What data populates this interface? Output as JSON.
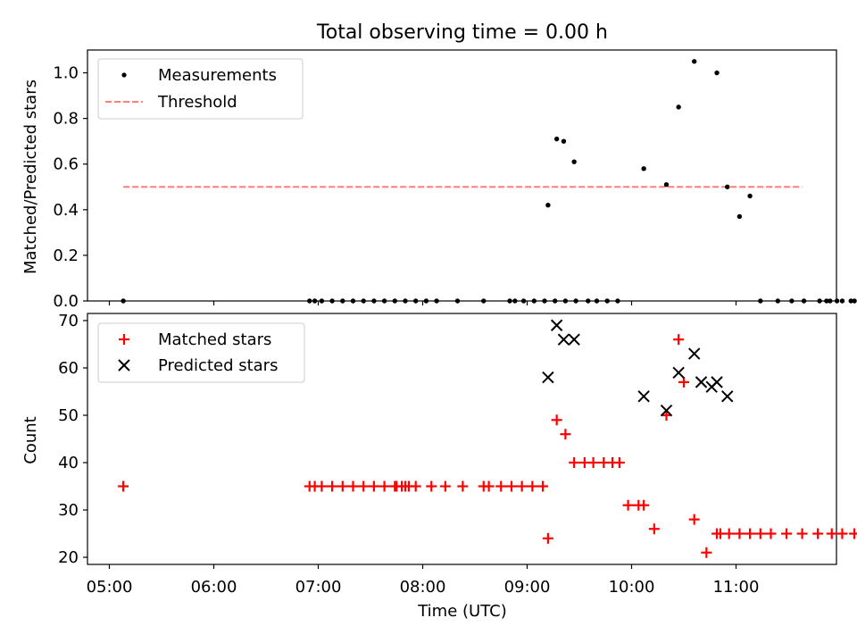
{
  "chart_data": [
    {
      "type": "scatter",
      "title": "Total observing time = 0.00 h",
      "xlabel": "",
      "ylabel": "Matched/Predicted stars",
      "ylim": [
        0,
        1.1
      ],
      "yticks": [
        0.0,
        0.2,
        0.4,
        0.6,
        0.8,
        1.0
      ],
      "ytick_labels": [
        "0.0",
        "0.2",
        "0.4",
        "0.6",
        "0.8",
        "1.0"
      ],
      "legend_position": "top-left",
      "legend": [
        "Measurements",
        "Threshold"
      ],
      "series": [
        {
          "name": "Measurements",
          "marker": "dot",
          "color": "#000000",
          "x": [
            "05:08",
            "06:55",
            "06:58",
            "07:02",
            "07:08",
            "07:14",
            "07:20",
            "07:26",
            "07:32",
            "07:38",
            "07:44",
            "07:50",
            "07:56",
            "08:02",
            "08:08",
            "08:20",
            "08:35",
            "08:50",
            "08:53",
            "08:58",
            "09:04",
            "09:10",
            "09:16",
            "09:22",
            "09:28",
            "09:12",
            "09:17",
            "09:21",
            "09:27",
            "09:35",
            "09:40",
            "09:46",
            "09:52",
            "10:07",
            "10:20",
            "10:27",
            "10:36",
            "10:49",
            "10:55",
            "11:02",
            "11:08",
            "11:14",
            "11:24",
            "11:32",
            "11:39",
            "11:48",
            "11:54",
            "12:01",
            "12:08",
            "11:52",
            "11:58",
            "12:06"
          ],
          "y": [
            0.0,
            0.0,
            0.0,
            0.0,
            0.0,
            0.0,
            0.0,
            0.0,
            0.0,
            0.0,
            0.0,
            0.0,
            0.0,
            0.0,
            0.0,
            0.0,
            0.0,
            0.0,
            0.0,
            0.0,
            0.0,
            0.0,
            0.0,
            0.0,
            0.0,
            0.42,
            0.71,
            0.7,
            0.61,
            0.0,
            0.0,
            0.0,
            0.0,
            0.58,
            0.51,
            0.85,
            1.05,
            1.0,
            0.5,
            0.37,
            0.46,
            0.0,
            0.0,
            0.0,
            0.0,
            0.0,
            0.0,
            0.0,
            0.0,
            0.0,
            0.0,
            0.0
          ]
        },
        {
          "name": "Threshold",
          "style": "dashed",
          "color": "#ff7f7f",
          "x": [
            "05:08",
            "11:38"
          ],
          "y": [
            0.5,
            0.5
          ]
        }
      ]
    },
    {
      "type": "scatter",
      "title": "",
      "xlabel": "Time (UTC)",
      "ylabel": "Count",
      "ylim": [
        18.5,
        71.5
      ],
      "yticks": [
        20,
        30,
        40,
        50,
        60,
        70
      ],
      "ytick_labels": [
        "20",
        "30",
        "40",
        "50",
        "60",
        "70"
      ],
      "xticks": [
        "05:00",
        "06:00",
        "07:00",
        "08:00",
        "09:00",
        "10:00",
        "11:00"
      ],
      "legend_position": "top-left",
      "legend": [
        "Matched stars",
        "Predicted stars"
      ],
      "series": [
        {
          "name": "Matched stars",
          "marker": "plus",
          "color": "#ff0000",
          "x": [
            "05:08",
            "06:55",
            "06:58",
            "07:02",
            "07:08",
            "07:14",
            "07:20",
            "07:26",
            "07:32",
            "07:38",
            "07:44",
            "07:50",
            "07:56",
            "07:45",
            "07:48",
            "07:52",
            "08:05",
            "08:13",
            "08:23",
            "08:35",
            "08:38",
            "08:45",
            "08:51",
            "08:57",
            "09:03",
            "09:09",
            "09:12",
            "09:17",
            "09:22",
            "09:27",
            "09:33",
            "09:38",
            "09:44",
            "09:49",
            "09:53",
            "09:58",
            "10:04",
            "10:07",
            "10:13",
            "10:20",
            "10:27",
            "10:30",
            "10:36",
            "10:43",
            "10:49",
            "10:51",
            "10:56",
            "11:02",
            "11:08",
            "11:14",
            "11:20",
            "11:29",
            "11:38",
            "11:47",
            "11:55",
            "12:01",
            "12:08",
            "12:14"
          ],
          "y": [
            35,
            35,
            35,
            35,
            35,
            35,
            35,
            35,
            35,
            35,
            35,
            35,
            35,
            35,
            35,
            35,
            35,
            35,
            35,
            35,
            35,
            35,
            35,
            35,
            35,
            35,
            24,
            49,
            46,
            40,
            40,
            40,
            40,
            40,
            40,
            31,
            31,
            31,
            26,
            50,
            66,
            57,
            28,
            21,
            25,
            25,
            25,
            25,
            25,
            25,
            25,
            25,
            25,
            25,
            25,
            25,
            25,
            25
          ]
        },
        {
          "name": "Predicted stars",
          "marker": "x",
          "color": "#000000",
          "x": [
            "09:12",
            "09:17",
            "09:21",
            "09:27",
            "10:07",
            "10:20",
            "10:27",
            "10:36",
            "10:40",
            "10:46",
            "10:49",
            "10:55"
          ],
          "y": [
            58,
            69,
            66,
            66,
            54,
            51,
            59,
            63,
            57,
            56,
            57,
            54
          ]
        }
      ]
    }
  ]
}
